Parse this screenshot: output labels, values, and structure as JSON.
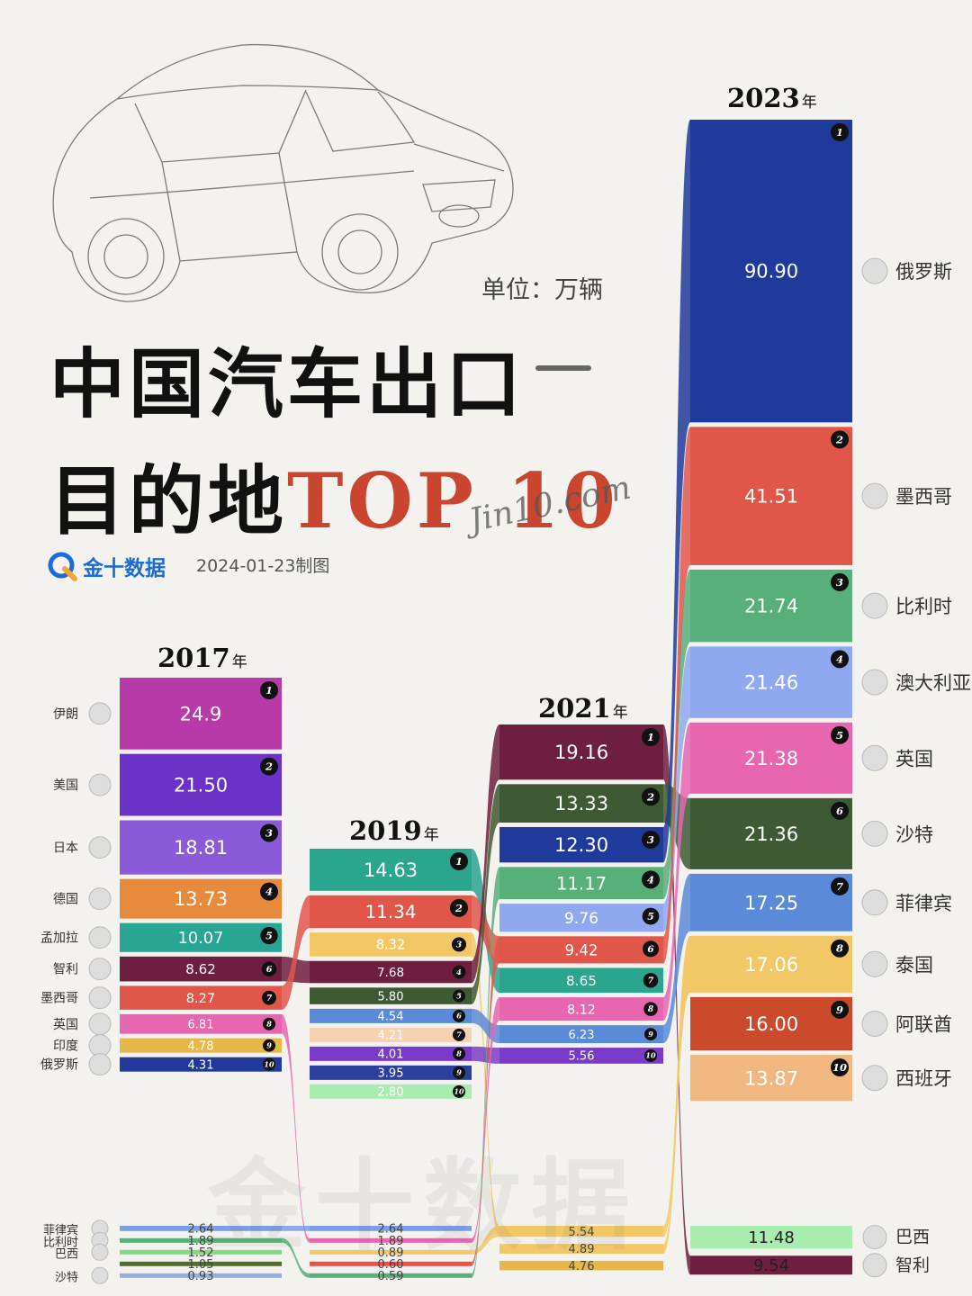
{
  "header": {
    "unit_label": "单位：万辆",
    "title_line1": "中国汽车出口",
    "title_line2_cn": "目的地",
    "title_line2_accent": "TOP 10",
    "brand_name": "金十数据",
    "brand_date": "2024-01-23制图",
    "signature": "Jin10.com",
    "watermark": "金十数据"
  },
  "colors": {
    "background": "#f3f2ef",
    "title_accent": "#c9452d",
    "brand": "#1c6cd6"
  },
  "chart_data": {
    "type": "bar",
    "title": "中国汽车出口目的地TOP 10",
    "unit": "万辆",
    "years": [
      {
        "year": "2017",
        "year_suffix": "年",
        "top10": [
          {
            "rank": 1,
            "country": "伊朗",
            "value": "24.9",
            "color": "#b83aa8"
          },
          {
            "rank": 2,
            "country": "美国",
            "value": "21.50",
            "color": "#6a32c6"
          },
          {
            "rank": 3,
            "country": "日本",
            "value": "18.81",
            "color": "#8a5ad8"
          },
          {
            "rank": 4,
            "country": "德国",
            "value": "13.73",
            "color": "#e88a3c"
          },
          {
            "rank": 5,
            "country": "孟加拉",
            "value": "10.07",
            "color": "#29a593"
          },
          {
            "rank": 6,
            "country": "智利",
            "value": "8.62",
            "color": "#6e1e3e"
          },
          {
            "rank": 7,
            "country": "墨西哥",
            "value": "8.27",
            "color": "#e0574a"
          },
          {
            "rank": 8,
            "country": "英国",
            "value": "6.81",
            "color": "#e866b0"
          },
          {
            "rank": 9,
            "country": "印度",
            "value": "4.78",
            "color": "#e6b84a"
          },
          {
            "rank": 10,
            "country": "俄罗斯",
            "value": "4.31",
            "color": "#1f3a9a"
          }
        ],
        "others": [
          {
            "country": "菲律宾",
            "value": "2.64",
            "color": "#7a9ee8"
          },
          {
            "country": "比利时",
            "value": "1.89",
            "color": "#57b07a"
          },
          {
            "country": "巴西",
            "value": "1.52",
            "color": "#7fdc7f"
          },
          {
            "country": "",
            "value": "1.05",
            "color": "#556b2f"
          },
          {
            "country": "沙特",
            "value": "0.93",
            "color": "#8fb0e0"
          }
        ]
      },
      {
        "year": "2019",
        "year_suffix": "年",
        "top10": [
          {
            "rank": 1,
            "country": "",
            "value": "14.63",
            "color": "#2aa58e"
          },
          {
            "rank": 2,
            "country": "",
            "value": "11.34",
            "color": "#e0574a"
          },
          {
            "rank": 3,
            "country": "",
            "value": "8.32",
            "color": "#f2c866"
          },
          {
            "rank": 4,
            "country": "",
            "value": "7.68",
            "color": "#6e1e3e"
          },
          {
            "rank": 5,
            "country": "",
            "value": "5.80",
            "color": "#3e5a34"
          },
          {
            "rank": 6,
            "country": "",
            "value": "4.54",
            "color": "#5a8ad8"
          },
          {
            "rank": 7,
            "country": "",
            "value": "4.21",
            "color": "#f6d2b0"
          },
          {
            "rank": 8,
            "country": "",
            "value": "4.01",
            "color": "#7a3cc8"
          },
          {
            "rank": 9,
            "country": "",
            "value": "3.95",
            "color": "#2a3f9e"
          },
          {
            "rank": 10,
            "country": "",
            "value": "2.80",
            "color": "#a8ecb0"
          }
        ],
        "others": [
          {
            "country": "",
            "value": "2.64",
            "color": "#7a9ee8"
          },
          {
            "country": "",
            "value": "1.89",
            "color": "#e866b0"
          },
          {
            "country": "",
            "value": "0.89",
            "color": "#f2c866"
          },
          {
            "country": "",
            "value": "0.60",
            "color": "#e0574a"
          },
          {
            "country": "",
            "value": "0.59",
            "color": "#57b07a"
          }
        ]
      },
      {
        "year": "2021",
        "year_suffix": "年",
        "top10": [
          {
            "rank": 1,
            "country": "",
            "value": "19.16",
            "color": "#6e1e3e"
          },
          {
            "rank": 2,
            "country": "",
            "value": "13.33",
            "color": "#3e5a34"
          },
          {
            "rank": 3,
            "country": "",
            "value": "12.30",
            "color": "#1f3a9a"
          },
          {
            "rank": 4,
            "country": "",
            "value": "11.17",
            "color": "#57b07a"
          },
          {
            "rank": 5,
            "country": "",
            "value": "9.76",
            "color": "#8fa8f0"
          },
          {
            "rank": 6,
            "country": "",
            "value": "9.42",
            "color": "#e0574a"
          },
          {
            "rank": 7,
            "country": "",
            "value": "8.65",
            "color": "#2aa58e"
          },
          {
            "rank": 8,
            "country": "",
            "value": "8.12",
            "color": "#e866b0"
          },
          {
            "rank": 9,
            "country": "",
            "value": "6.23",
            "color": "#5a8ad8"
          },
          {
            "rank": 10,
            "country": "",
            "value": "5.56",
            "color": "#7a3cc8"
          }
        ],
        "others": [
          {
            "country": "",
            "value": "5.54",
            "color": "#f2c866"
          },
          {
            "country": "",
            "value": "4.89",
            "color": "#f2c866"
          },
          {
            "country": "",
            "value": "4.76",
            "color": "#e6b84a"
          }
        ]
      },
      {
        "year": "2023",
        "year_suffix": "年",
        "top10": [
          {
            "rank": 1,
            "country": "俄罗斯",
            "value": "90.90",
            "color": "#1f3a9a"
          },
          {
            "rank": 2,
            "country": "墨西哥",
            "value": "41.51",
            "color": "#e0574a"
          },
          {
            "rank": 3,
            "country": "比利时",
            "value": "21.74",
            "color": "#57b07a"
          },
          {
            "rank": 4,
            "country": "澳大利亚",
            "value": "21.46",
            "color": "#8fa8f0"
          },
          {
            "rank": 5,
            "country": "英国",
            "value": "21.38",
            "color": "#e866b0"
          },
          {
            "rank": 6,
            "country": "沙特",
            "value": "21.36",
            "color": "#3e5a34"
          },
          {
            "rank": 7,
            "country": "菲律宾",
            "value": "17.25",
            "color": "#5a8ad8"
          },
          {
            "rank": 8,
            "country": "泰国",
            "value": "17.06",
            "color": "#f2c866"
          },
          {
            "rank": 9,
            "country": "阿联酋",
            "value": "16.00",
            "color": "#cc4a2c"
          },
          {
            "rank": 10,
            "country": "西班牙",
            "value": "13.87",
            "color": "#f0b880"
          }
        ],
        "others": [
          {
            "country": "巴西",
            "value": "11.48",
            "color": "#a8ecb0"
          },
          {
            "country": "智利",
            "value": "9.54",
            "color": "#6e1e3e"
          }
        ]
      }
    ]
  }
}
